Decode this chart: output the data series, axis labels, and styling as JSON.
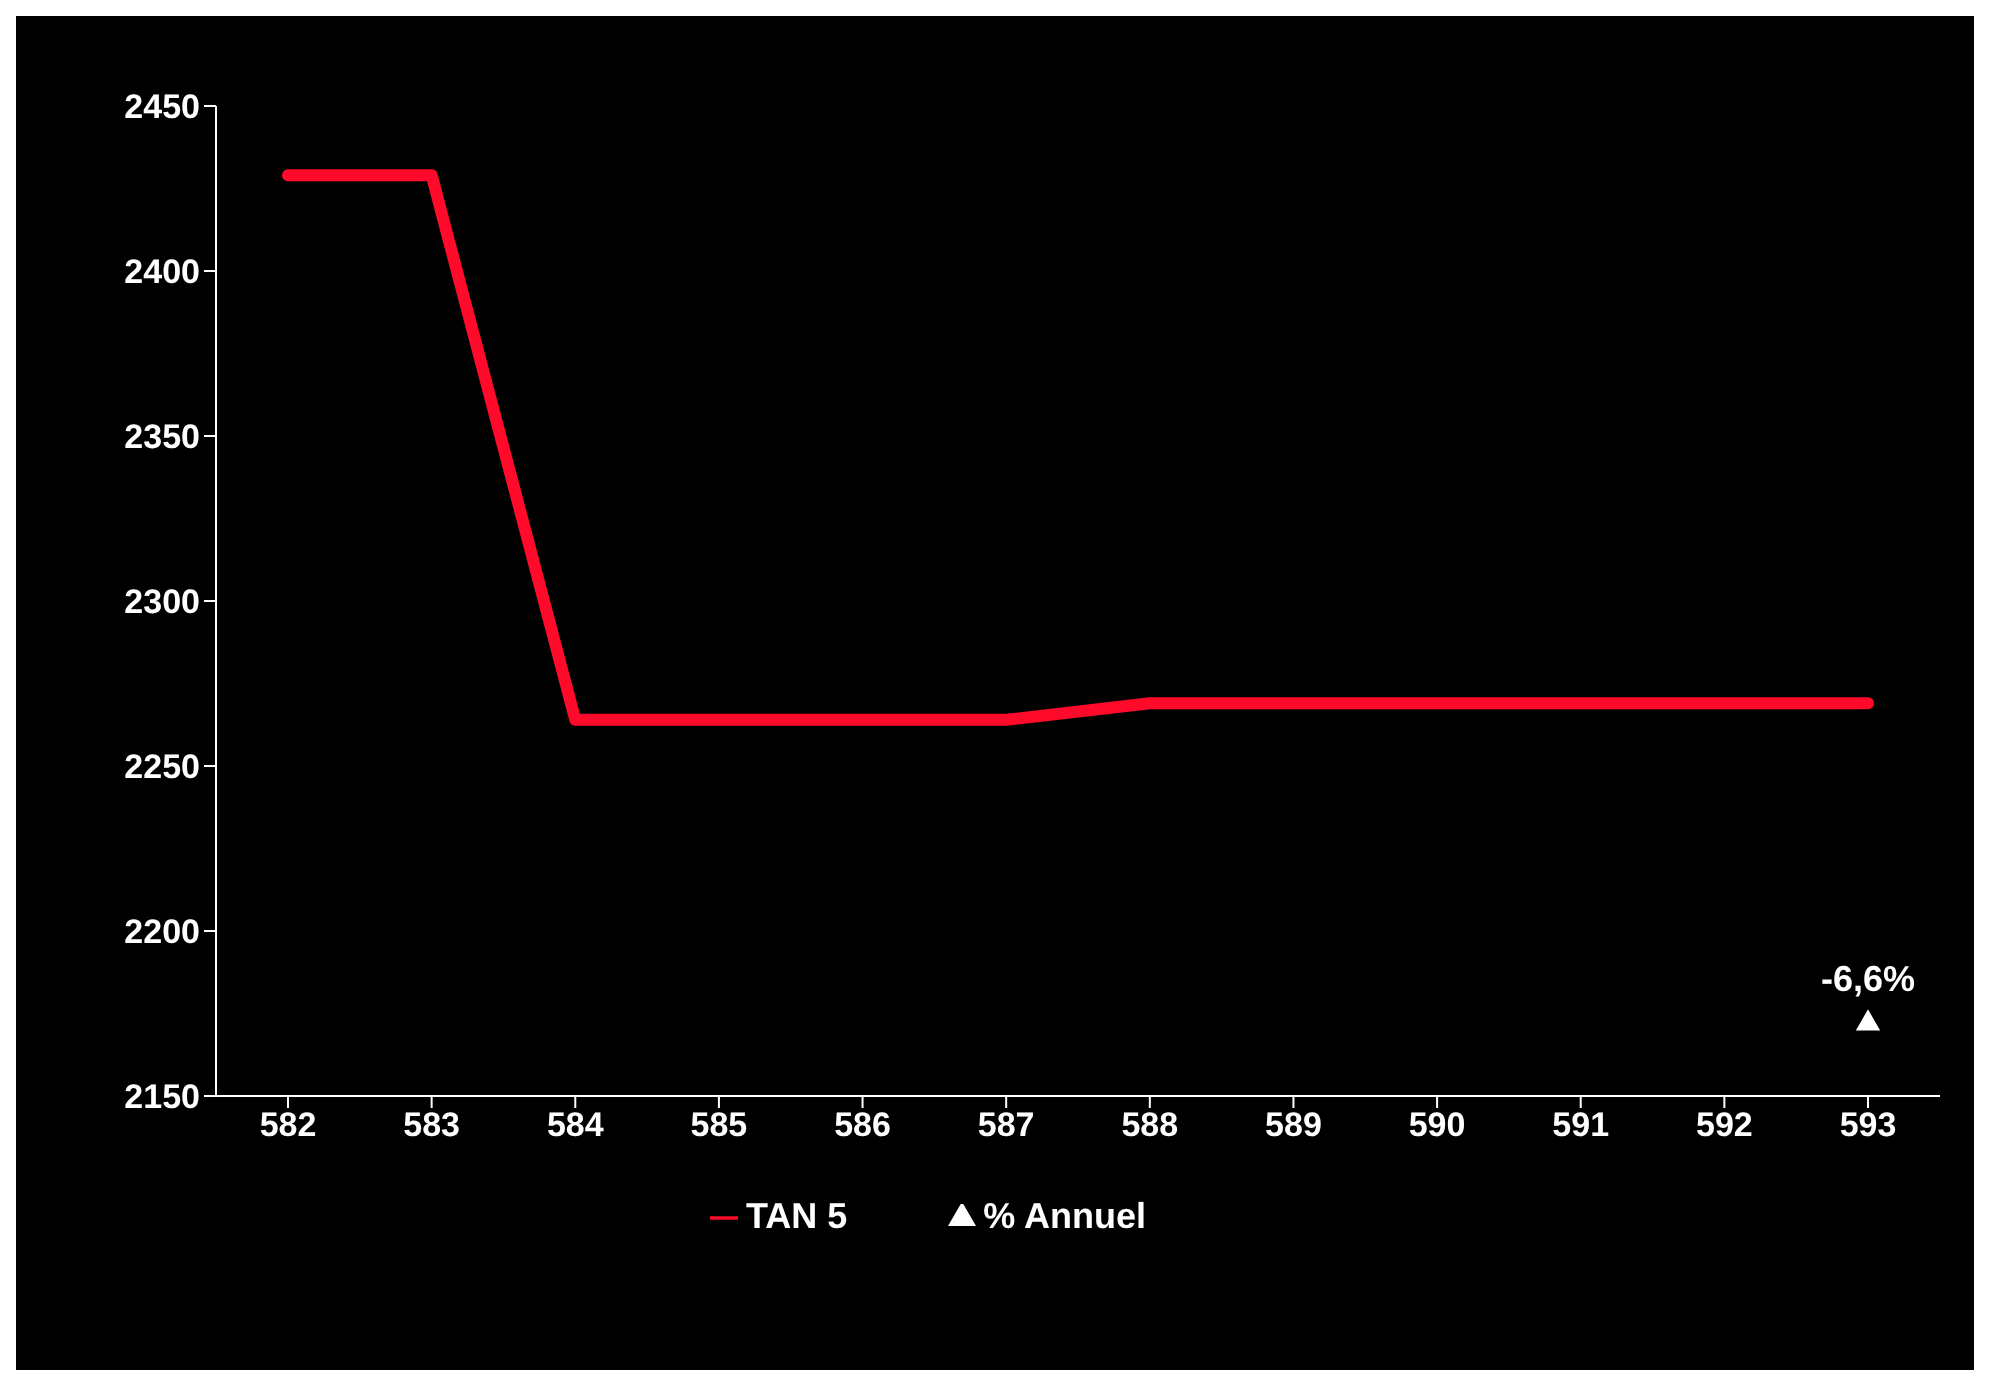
{
  "chart_data": {
    "type": "line",
    "categories": [
      "582",
      "583",
      "584",
      "585",
      "586",
      "587",
      "588",
      "589",
      "590",
      "591",
      "592",
      "593"
    ],
    "series": [
      {
        "name": "TAN 5",
        "type": "line",
        "color": "#ff0a2a",
        "values": [
          2429,
          2429,
          2264,
          2264,
          2264,
          2264,
          2269,
          2269,
          2269,
          2269,
          2269,
          2269
        ]
      },
      {
        "name": "% Annuel",
        "type": "scatter",
        "color": "#ffffff",
        "marker": "triangle",
        "values": [
          null,
          null,
          null,
          null,
          null,
          null,
          null,
          null,
          null,
          null,
          null,
          2172
        ]
      }
    ],
    "annotations": [
      {
        "text": "-6,6%",
        "x": "593",
        "y": 2172
      }
    ],
    "ylim": [
      2150,
      2450
    ],
    "yticks": [
      2150,
      2200,
      2250,
      2300,
      2350,
      2400,
      2450
    ],
    "grid": false,
    "legend": "bottom",
    "line_style": "solid"
  }
}
